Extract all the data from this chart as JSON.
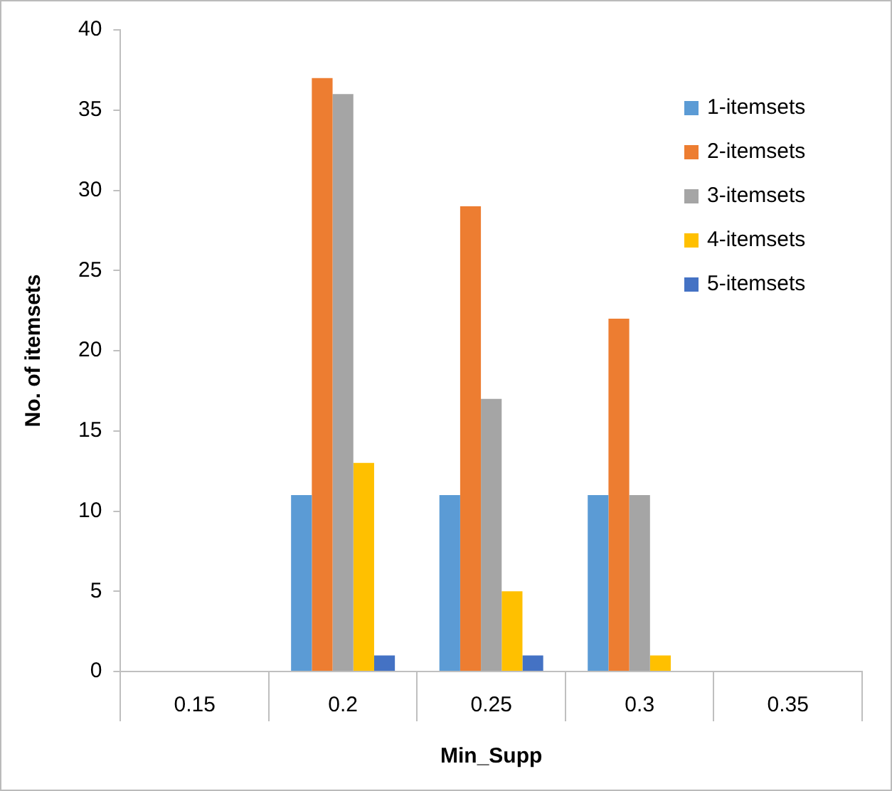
{
  "chart_data": {
    "type": "bar",
    "xlabel": "Min_Supp",
    "ylabel": "No. of itemsets",
    "categories": [
      "0.15",
      "0.2",
      "0.25",
      "0.3",
      "0.35"
    ],
    "series": [
      {
        "name": "1-itemsets",
        "color": "#5b9bd5",
        "values": [
          0,
          11,
          11,
          11,
          0
        ]
      },
      {
        "name": "2-itemsets",
        "color": "#ed7d31",
        "values": [
          0,
          37,
          29,
          22,
          0
        ]
      },
      {
        "name": "3-itemsets",
        "color": "#a5a5a5",
        "values": [
          0,
          36,
          17,
          11,
          0
        ]
      },
      {
        "name": "4-itemsets",
        "color": "#ffc000",
        "values": [
          0,
          13,
          5,
          1,
          0
        ]
      },
      {
        "name": "5-itemsets",
        "color": "#4472c4",
        "values": [
          0,
          1,
          1,
          0,
          0
        ]
      }
    ],
    "ylim": [
      0,
      40
    ],
    "yticks": [
      0,
      5,
      10,
      15,
      20,
      25,
      30,
      35,
      40
    ],
    "grid": false,
    "legend": "top right"
  }
}
